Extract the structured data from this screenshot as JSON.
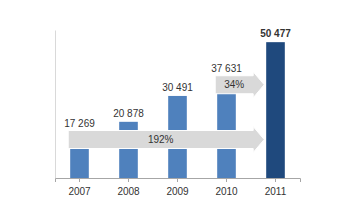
{
  "chart_data": {
    "type": "bar",
    "categories": [
      "2007",
      "2008",
      "2009",
      "2010",
      "2011"
    ],
    "values": [
      17269,
      20878,
      30491,
      37631,
      50477
    ],
    "value_labels": [
      "17 269",
      "20 878",
      "30 491",
      "37 631",
      "50 477"
    ],
    "colors": [
      "#4f81bd",
      "#4f81bd",
      "#4f81bd",
      "#4f81bd",
      "#1f497d"
    ],
    "ylim": [
      0,
      55000
    ],
    "data_labels": true,
    "tick_labels": "x",
    "annotations": [
      {
        "text": "192%",
        "from": "2007",
        "to": "2011"
      },
      {
        "text": "34%",
        "from": "2010",
        "to": "2011"
      }
    ]
  }
}
